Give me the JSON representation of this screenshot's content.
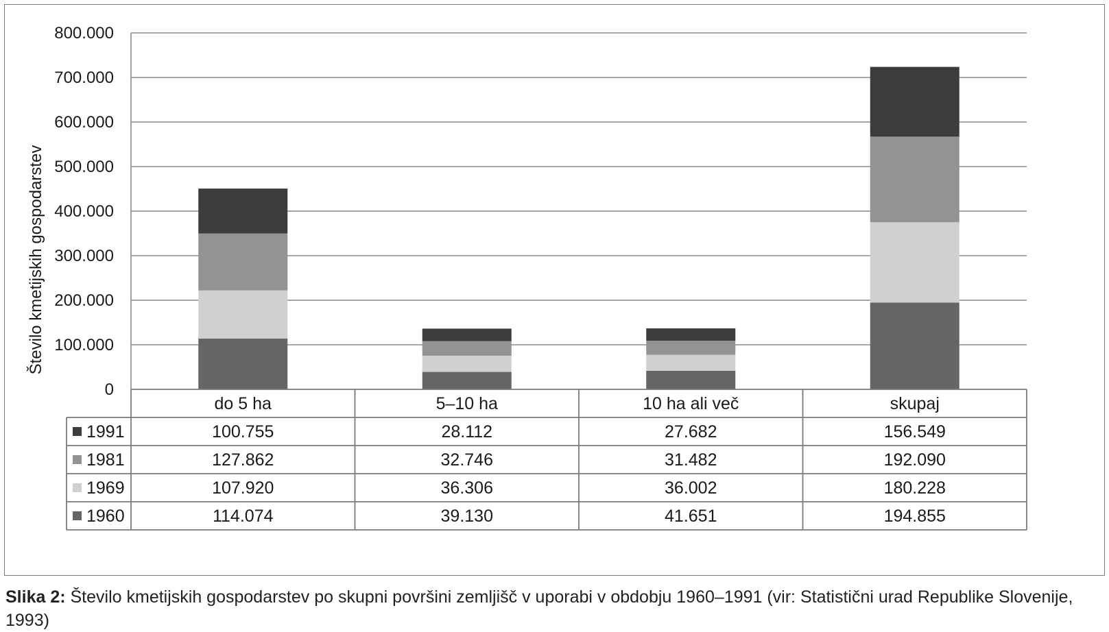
{
  "chart_data": {
    "type": "bar",
    "stacked": true,
    "ylabel": "Število kmetijskih gospodarstev",
    "xlabel": "",
    "ylim": [
      0,
      800000
    ],
    "yticks": [
      0,
      100000,
      200000,
      300000,
      400000,
      500000,
      600000,
      700000,
      800000
    ],
    "ytick_labels": [
      "0",
      "100.000",
      "200.000",
      "300.000",
      "400.000",
      "500.000",
      "600.000",
      "700.000",
      "800.000"
    ],
    "grid": true,
    "legend": "data-table-left",
    "categories": [
      "do 5 ha",
      "5–10 ha",
      "10 ha ali več",
      "skupaj"
    ],
    "series": [
      {
        "name": "1991",
        "color": "#3c3c3c",
        "values": [
          100755,
          28112,
          27682,
          156549
        ],
        "labels": [
          "100.755",
          "28.112",
          "27.682",
          "156.549"
        ]
      },
      {
        "name": "1981",
        "color": "#939393",
        "values": [
          127862,
          32746,
          31482,
          192090
        ],
        "labels": [
          "127.862",
          "32.746",
          "31.482",
          "192.090"
        ]
      },
      {
        "name": "1969",
        "color": "#d0d0d0",
        "values": [
          107920,
          36306,
          36002,
          180228
        ],
        "labels": [
          "107.920",
          "36.306",
          "36.002",
          "180.228"
        ]
      },
      {
        "name": "1960",
        "color": "#656565",
        "values": [
          114074,
          39130,
          41651,
          194855
        ],
        "labels": [
          "114.074",
          "39.130",
          "41.651",
          "194.855"
        ]
      }
    ]
  },
  "caption": {
    "label": "Slika 2:",
    "text": " Število kmetijskih gospodarstev po skupni površini zemljišč v uporabi v obdobju 1960–1991 (vir: Statistični urad Republike Slovenije, 1993)"
  }
}
